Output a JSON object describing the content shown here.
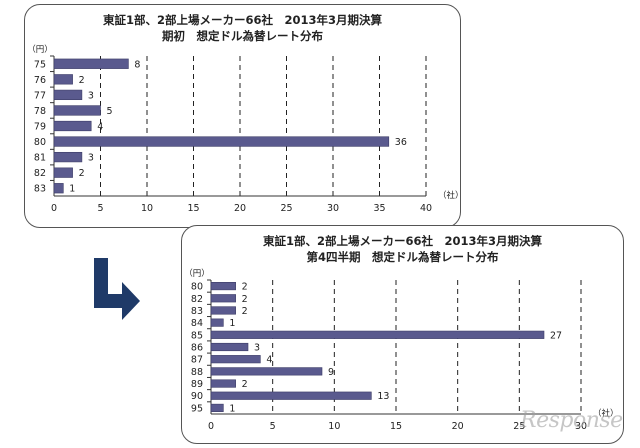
{
  "colors": {
    "bar": "#5a5a8e",
    "axis": "#333333",
    "grid": "#222222"
  },
  "chart_data": [
    {
      "type": "bar",
      "orientation": "horizontal",
      "title": "東証1部、2部上場メーカー66社　2013年3月期決算",
      "subtitle": "期初　想定ドル為替レート分布",
      "ylabel": "（円）",
      "xlabel": "（社）",
      "categories": [
        "75",
        "76",
        "77",
        "78",
        "79",
        "80",
        "81",
        "82",
        "83"
      ],
      "values": [
        8,
        2,
        3,
        5,
        4,
        36,
        3,
        2,
        1
      ],
      "xlim": [
        0,
        40
      ],
      "xticks": [
        "0",
        "5",
        "10",
        "15",
        "20",
        "25",
        "30",
        "35",
        "40"
      ],
      "grid": "vertical dashed"
    },
    {
      "type": "bar",
      "orientation": "horizontal",
      "title": "東証1部、2部上場メーカー66社　2013年3月期決算",
      "subtitle": "第4四半期　想定ドル為替レート分布",
      "ylabel": "（円）",
      "xlabel": "（社）",
      "categories": [
        "80",
        "82",
        "83",
        "84",
        "85",
        "86",
        "87",
        "88",
        "89",
        "90",
        "95"
      ],
      "values": [
        2,
        2,
        2,
        1,
        27,
        3,
        4,
        9,
        2,
        13,
        1
      ],
      "xlim": [
        0,
        30
      ],
      "xticks": [
        "0",
        "5",
        "10",
        "15",
        "20",
        "25",
        "30"
      ],
      "grid": "vertical dashed"
    }
  ],
  "arrow": {
    "icon": "turn-down-right-arrow-icon",
    "color": "#1f3a68"
  },
  "watermark": "Response"
}
